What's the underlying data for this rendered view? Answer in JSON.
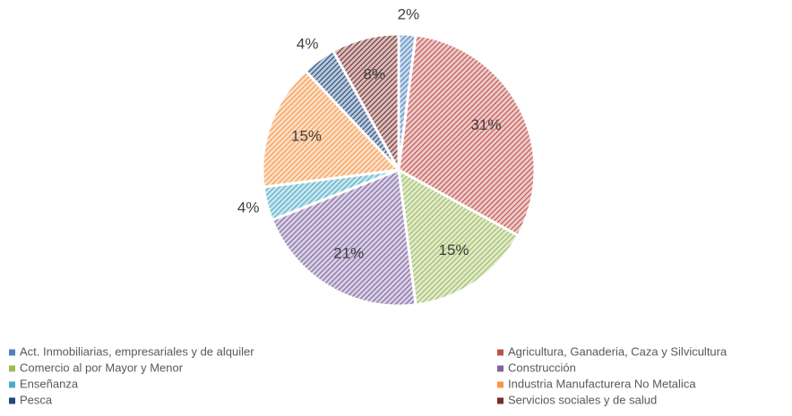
{
  "chart_data": {
    "type": "pie",
    "categories": [
      "Act. Inmobiliarias, empresariales y de alquiler",
      "Agricultura, Ganaderia, Caza y Silvicultura",
      "Comercio al por Mayor y Menor",
      "Construcción",
      "Enseñanza",
      "Industria Manufacturera No Metalica",
      "Pesca",
      "Servicios sociales y de salud"
    ],
    "values": [
      2,
      31,
      15,
      21,
      4,
      15,
      4,
      8
    ],
    "value_labels": [
      "2%",
      "31%",
      "15%",
      "21%",
      "4%",
      "15%",
      "4%",
      "8%"
    ],
    "colors": [
      "#4f81bd",
      "#c0504d",
      "#9bbb59",
      "#8064a2",
      "#4bacc6",
      "#f79646",
      "#1f497d",
      "#772c2a"
    ],
    "legend": "bottom"
  }
}
